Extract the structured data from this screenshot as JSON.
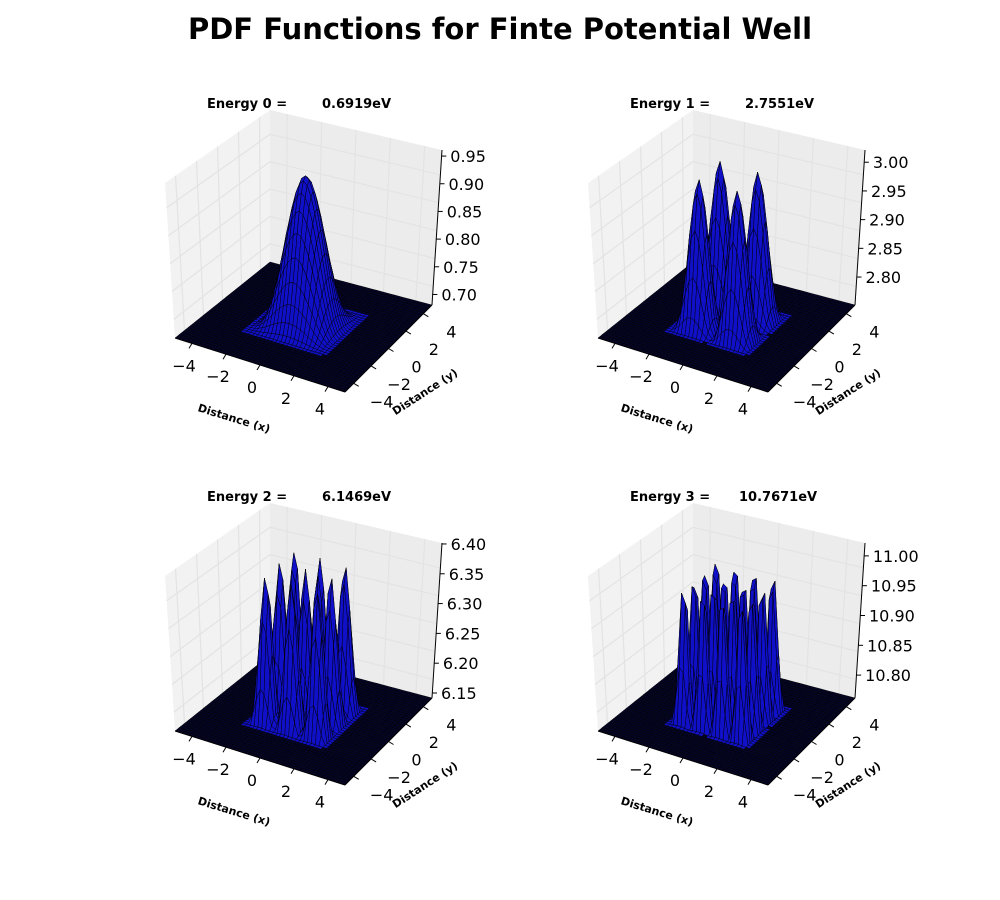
{
  "page": {
    "title": "PDF Functions for Finte Potential Well"
  },
  "colors": {
    "surface": "#1010c8",
    "edge": "#000000",
    "pane": "#f2f2f2",
    "grid": "#e3e3e3"
  },
  "chart_data": [
    {
      "type": "surface3d",
      "title_prefix": "Energy 0 =",
      "title_value": "0.6919eV",
      "xlabel": "Distance (x)",
      "ylabel": "Distance (y)",
      "xlim": [
        -5,
        5
      ],
      "ylim": [
        -5,
        5
      ],
      "zlim": [
        0.69,
        0.97
      ],
      "xticks": [
        "−4",
        "−2",
        "0",
        "2",
        "4"
      ],
      "yticks": [
        "−4",
        "−2",
        "0",
        "2",
        "4"
      ],
      "zticks": [
        "0.70",
        "0.75",
        "0.80",
        "0.85",
        "0.90",
        "0.95"
      ],
      "state": [
        0,
        0
      ],
      "energy_eV": 0.6919,
      "peak": 0.96,
      "grid": true
    },
    {
      "type": "surface3d",
      "title_prefix": "Energy 1 =",
      "title_value": "2.7551eV",
      "xlabel": "Distance (x)",
      "ylabel": "Distance (y)",
      "xlim": [
        -5,
        5
      ],
      "ylim": [
        -5,
        5
      ],
      "zlim": [
        2.76,
        3.03
      ],
      "xticks": [
        "−4",
        "−2",
        "0",
        "2",
        "4"
      ],
      "yticks": [
        "−4",
        "−2",
        "0",
        "2",
        "4"
      ],
      "zticks": [
        "2.80",
        "2.85",
        "2.90",
        "2.95",
        "3.00"
      ],
      "state": [
        1,
        1
      ],
      "energy_eV": 2.7551,
      "peak": 3.02,
      "grid": true
    },
    {
      "type": "surface3d",
      "title_prefix": "Energy 2 =",
      "title_value": "6.1469eV",
      "xlabel": "Distance (x)",
      "ylabel": "Distance (y)",
      "xlim": [
        -5,
        5
      ],
      "ylim": [
        -5,
        5
      ],
      "zlim": [
        6.15,
        6.41
      ],
      "xticks": [
        "−4",
        "−2",
        "0",
        "2",
        "4"
      ],
      "yticks": [
        "−4",
        "−2",
        "0",
        "2",
        "4"
      ],
      "zticks": [
        "6.15",
        "6.20",
        "6.25",
        "6.30",
        "6.35",
        "6.40"
      ],
      "state": [
        2,
        2
      ],
      "energy_eV": 6.1469,
      "peak": 6.4,
      "grid": true
    },
    {
      "type": "surface3d",
      "title_prefix": "Energy 3 =",
      "title_value": "10.7671eV",
      "xlabel": "Distance (x)",
      "ylabel": "Distance (y)",
      "xlim": [
        -5,
        5
      ],
      "ylim": [
        -5,
        5
      ],
      "zlim": [
        10.77,
        11.03
      ],
      "xticks": [
        "−4",
        "−2",
        "0",
        "2",
        "4"
      ],
      "yticks": [
        "−4",
        "−2",
        "0",
        "2",
        "4"
      ],
      "zticks": [
        "10.80",
        "10.85",
        "10.90",
        "10.95",
        "11.00"
      ],
      "state": [
        3,
        3
      ],
      "energy_eV": 10.7671,
      "peak": 11.02,
      "grid": true
    }
  ]
}
